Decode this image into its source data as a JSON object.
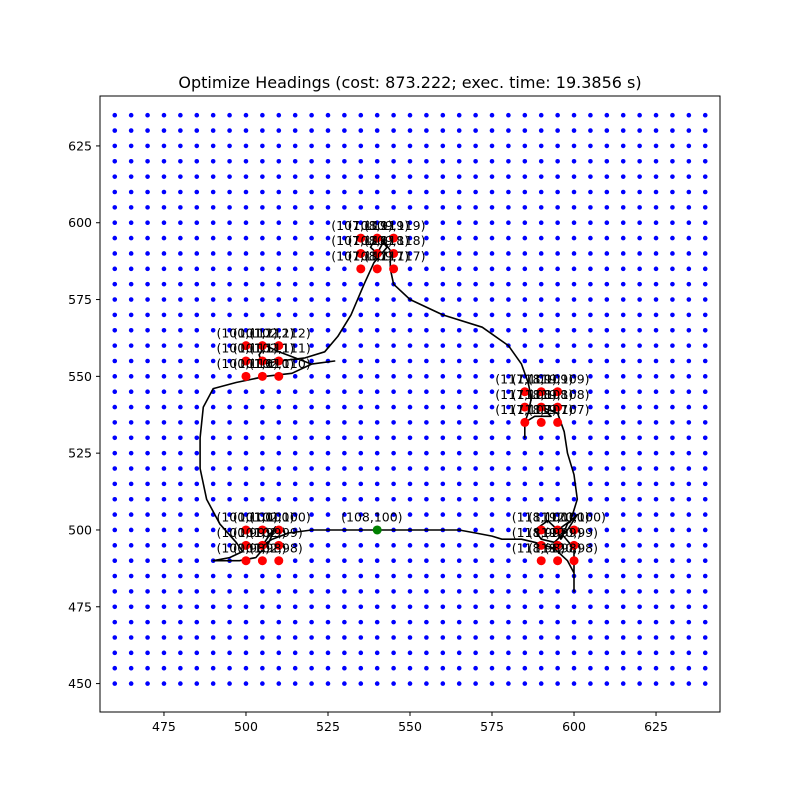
{
  "chart_data": {
    "type": "scatter",
    "title": "Optimize Headings (cost: 873.222; exec. time: 19.3856 s)",
    "xlabel": "",
    "ylabel": "",
    "xlim": [
      460,
      640
    ],
    "ylim": [
      450,
      635
    ],
    "x_ticks": [
      475,
      500,
      525,
      550,
      575,
      600,
      625
    ],
    "y_ticks": [
      450,
      475,
      500,
      525,
      550,
      575,
      600,
      625
    ],
    "grid": false,
    "legend": null,
    "colors": {
      "grid_points": "#0000ff",
      "target_points": "#ff0000",
      "start_point": "#008000",
      "path": "#000000"
    },
    "grid_points": {
      "x_start": 460,
      "x_end": 640,
      "y_start": 450,
      "y_end": 635,
      "step": 5
    },
    "target_points": [
      [
        535,
        585
      ],
      [
        540,
        585
      ],
      [
        545,
        585
      ],
      [
        535,
        590
      ],
      [
        540,
        590
      ],
      [
        545,
        590
      ],
      [
        535,
        595
      ],
      [
        540,
        595
      ],
      [
        545,
        595
      ],
      [
        500,
        550
      ],
      [
        505,
        550
      ],
      [
        510,
        550
      ],
      [
        500,
        555
      ],
      [
        505,
        555
      ],
      [
        510,
        555
      ],
      [
        500,
        560
      ],
      [
        505,
        560
      ],
      [
        510,
        560
      ],
      [
        585,
        535
      ],
      [
        590,
        535
      ],
      [
        595,
        535
      ],
      [
        585,
        540
      ],
      [
        590,
        540
      ],
      [
        595,
        540
      ],
      [
        585,
        545
      ],
      [
        590,
        545
      ],
      [
        595,
        545
      ],
      [
        500,
        490
      ],
      [
        505,
        490
      ],
      [
        510,
        490
      ],
      [
        500,
        495
      ],
      [
        505,
        495
      ],
      [
        510,
        495
      ],
      [
        500,
        500
      ],
      [
        505,
        500
      ],
      [
        510,
        500
      ],
      [
        590,
        490
      ],
      [
        595,
        490
      ],
      [
        600,
        490
      ],
      [
        590,
        495
      ],
      [
        595,
        495
      ],
      [
        600,
        495
      ],
      [
        590,
        500
      ],
      [
        595,
        500
      ],
      [
        600,
        500
      ]
    ],
    "start_point": {
      "x": 540,
      "y": 500,
      "label": "(108,100)"
    },
    "point_labels": [
      {
        "text": "(107,119)",
        "x": 526,
        "y": 599
      },
      {
        "text": "(108,119)",
        "x": 531,
        "y": 599
      },
      {
        "text": "(109,119)",
        "x": 536,
        "y": 599
      },
      {
        "text": "(107,118)",
        "x": 526,
        "y": 594
      },
      {
        "text": "(108,118)",
        "x": 531,
        "y": 594
      },
      {
        "text": "(109,118)",
        "x": 536,
        "y": 594
      },
      {
        "text": "(107,117)",
        "x": 526,
        "y": 589
      },
      {
        "text": "(108,117)",
        "x": 531,
        "y": 589
      },
      {
        "text": "(109,117)",
        "x": 536,
        "y": 589
      },
      {
        "text": "(100,112)",
        "x": 491,
        "y": 564
      },
      {
        "text": "(101,112)",
        "x": 496,
        "y": 564
      },
      {
        "text": "(102,112)",
        "x": 501,
        "y": 564
      },
      {
        "text": "(100,111)",
        "x": 491,
        "y": 559
      },
      {
        "text": "(101,111)",
        "x": 496,
        "y": 559
      },
      {
        "text": "(102,111)",
        "x": 501,
        "y": 559
      },
      {
        "text": "(100,110)",
        "x": 491,
        "y": 554
      },
      {
        "text": "(101,110)",
        "x": 496,
        "y": 554
      },
      {
        "text": "(102,110)",
        "x": 501,
        "y": 554
      },
      {
        "text": "(117,109)",
        "x": 576,
        "y": 549
      },
      {
        "text": "(118,109)",
        "x": 581,
        "y": 549
      },
      {
        "text": "(119,109)",
        "x": 586,
        "y": 549
      },
      {
        "text": "(117,108)",
        "x": 576,
        "y": 544
      },
      {
        "text": "(118,108)",
        "x": 581,
        "y": 544
      },
      {
        "text": "(119,108)",
        "x": 586,
        "y": 544
      },
      {
        "text": "(117,107)",
        "x": 576,
        "y": 539
      },
      {
        "text": "(118,107)",
        "x": 581,
        "y": 539
      },
      {
        "text": "(119,107)",
        "x": 586,
        "y": 539
      },
      {
        "text": "(100,100)",
        "x": 491,
        "y": 504
      },
      {
        "text": "(101,100)",
        "x": 496,
        "y": 504
      },
      {
        "text": "(102,100)",
        "x": 501,
        "y": 504
      },
      {
        "text": "(100,99)",
        "x": 491,
        "y": 499
      },
      {
        "text": "(101,99)",
        "x": 496,
        "y": 499
      },
      {
        "text": "(102,99)",
        "x": 501,
        "y": 499
      },
      {
        "text": "(100,98)",
        "x": 491,
        "y": 494
      },
      {
        "text": "(101,98)",
        "x": 496,
        "y": 494
      },
      {
        "text": "(102,98)",
        "x": 501,
        "y": 494
      },
      {
        "text": "(118,100)",
        "x": 581,
        "y": 504
      },
      {
        "text": "(119,100)",
        "x": 586,
        "y": 504
      },
      {
        "text": "(120,100)",
        "x": 591,
        "y": 504
      },
      {
        "text": "(118,99)",
        "x": 581,
        "y": 499
      },
      {
        "text": "(119,99)",
        "x": 586,
        "y": 499
      },
      {
        "text": "(120,99)",
        "x": 591,
        "y": 499
      },
      {
        "text": "(118,98)",
        "x": 581,
        "y": 494
      },
      {
        "text": "(119,98)",
        "x": 586,
        "y": 494
      },
      {
        "text": "(120,98)",
        "x": 591,
        "y": 494
      }
    ],
    "path": [
      [
        540,
        500
      ],
      [
        530,
        500
      ],
      [
        520,
        500
      ],
      [
        513,
        499
      ],
      [
        508,
        497
      ],
      [
        505,
        495
      ],
      [
        507,
        498
      ],
      [
        509,
        501
      ],
      [
        507,
        496
      ],
      [
        503,
        491
      ],
      [
        498,
        490
      ],
      [
        494,
        490
      ],
      [
        490,
        490
      ],
      [
        495,
        491
      ],
      [
        499,
        493
      ],
      [
        497,
        496
      ],
      [
        492,
        502
      ],
      [
        488,
        510
      ],
      [
        486,
        520
      ],
      [
        486,
        530
      ],
      [
        487,
        540
      ],
      [
        490,
        546
      ],
      [
        497,
        548
      ],
      [
        506,
        550
      ],
      [
        514,
        551
      ],
      [
        520,
        554
      ],
      [
        527,
        555
      ],
      [
        520,
        554
      ],
      [
        515,
        556
      ],
      [
        510,
        558
      ],
      [
        506,
        560
      ],
      [
        504,
        557
      ],
      [
        505,
        554
      ],
      [
        510,
        555
      ],
      [
        518,
        556
      ],
      [
        524,
        558
      ],
      [
        528,
        563
      ],
      [
        532,
        570
      ],
      [
        536,
        580
      ],
      [
        539,
        587
      ],
      [
        543,
        592
      ],
      [
        540,
        596
      ],
      [
        538,
        592
      ],
      [
        540,
        590
      ],
      [
        542,
        594
      ],
      [
        544,
        591
      ],
      [
        544,
        585
      ],
      [
        545,
        580
      ],
      [
        550,
        575
      ],
      [
        560,
        570
      ],
      [
        572,
        566
      ],
      [
        580,
        560
      ],
      [
        584,
        554
      ],
      [
        586,
        548
      ],
      [
        587,
        543
      ],
      [
        586,
        538
      ],
      [
        585,
        535
      ],
      [
        585,
        530
      ],
      [
        585,
        535
      ],
      [
        588,
        537
      ],
      [
        593,
        537
      ],
      [
        590,
        540
      ],
      [
        595,
        538
      ],
      [
        597,
        532
      ],
      [
        598,
        525
      ],
      [
        600,
        518
      ],
      [
        601,
        510
      ],
      [
        599,
        503
      ],
      [
        595,
        500
      ],
      [
        596,
        497
      ],
      [
        598,
        502
      ],
      [
        601,
        505
      ],
      [
        598,
        500
      ],
      [
        594,
        496
      ],
      [
        590,
        497
      ],
      [
        588,
        500
      ],
      [
        592,
        503
      ],
      [
        596,
        499
      ],
      [
        600,
        494
      ],
      [
        600,
        480
      ],
      [
        600,
        486
      ],
      [
        598,
        490
      ],
      [
        594,
        494
      ],
      [
        588,
        496
      ],
      [
        584,
        497
      ],
      [
        578,
        497
      ],
      [
        575,
        498
      ],
      [
        570,
        499
      ],
      [
        565,
        500
      ],
      [
        555,
        500
      ],
      [
        545,
        500
      ],
      [
        540,
        500
      ]
    ]
  }
}
